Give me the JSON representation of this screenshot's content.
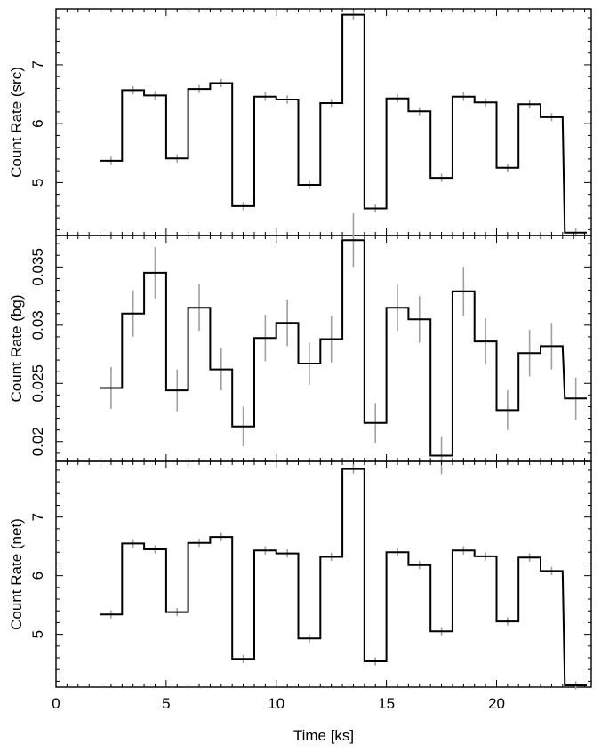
{
  "figure": {
    "xlabel": "Time [ks]",
    "colors": {
      "step": "#000000",
      "error_bars": "#a0a0a0",
      "frame": "#000000",
      "background": "#ffffff"
    }
  },
  "chart_data": [
    {
      "type": "line",
      "style": "step",
      "name": "src",
      "ylabel": "Count Rate (src)",
      "xlim": [
        0,
        24.3
      ],
      "ylim": [
        4.1,
        7.95
      ],
      "xticks": [
        0,
        5,
        10,
        15,
        20
      ],
      "xtick_labels": [
        "",
        "",
        "",
        "",
        ""
      ],
      "yticks": [
        5,
        6,
        7
      ],
      "ytick_labels": [
        "5",
        "6",
        "7"
      ],
      "bin_width": 1.0,
      "x": [
        2.5,
        3.5,
        4.5,
        5.5,
        6.5,
        7.5,
        8.5,
        9.5,
        10.5,
        11.5,
        12.5,
        13.5,
        14.5,
        15.5,
        16.5,
        17.5,
        18.5,
        19.5,
        20.5,
        21.5,
        22.5,
        23.6
      ],
      "y": [
        5.37,
        6.57,
        6.48,
        5.41,
        6.59,
        6.69,
        4.6,
        6.46,
        6.41,
        4.96,
        6.35,
        7.85,
        4.56,
        6.43,
        6.21,
        5.08,
        6.46,
        6.36,
        5.25,
        6.33,
        6.11,
        4.15
      ],
      "yerr": [
        0.07,
        0.07,
        0.07,
        0.07,
        0.07,
        0.07,
        0.07,
        0.07,
        0.07,
        0.07,
        0.07,
        0.08,
        0.07,
        0.07,
        0.07,
        0.07,
        0.07,
        0.07,
        0.07,
        0.07,
        0.07,
        0.07
      ],
      "grid": false
    },
    {
      "type": "line",
      "style": "step",
      "name": "bg",
      "ylabel": "Count Rate (bg)",
      "xlim": [
        0,
        24.3
      ],
      "ylim": [
        0.0183,
        0.0377
      ],
      "xticks": [
        0,
        5,
        10,
        15,
        20
      ],
      "xtick_labels": [
        "",
        "",
        "",
        "",
        ""
      ],
      "yticks": [
        0.02,
        0.025,
        0.03,
        0.035
      ],
      "ytick_labels": [
        "0.02",
        "0.025",
        "0.03",
        "0.035"
      ],
      "bin_width": 1.0,
      "x": [
        2.5,
        3.5,
        4.5,
        5.5,
        6.5,
        7.5,
        8.5,
        9.5,
        10.5,
        11.5,
        12.5,
        13.5,
        14.5,
        15.5,
        16.5,
        17.5,
        18.5,
        19.5,
        20.5,
        21.5,
        22.5,
        23.6
      ],
      "y": [
        0.0246,
        0.031,
        0.0345,
        0.0244,
        0.0315,
        0.0262,
        0.0213,
        0.0289,
        0.0302,
        0.0267,
        0.0288,
        0.0373,
        0.0216,
        0.0315,
        0.0305,
        0.0188,
        0.0329,
        0.0286,
        0.0227,
        0.0276,
        0.0282,
        0.0237
      ],
      "yerr": [
        0.0018,
        0.002,
        0.0022,
        0.0018,
        0.002,
        0.0018,
        0.0017,
        0.002,
        0.002,
        0.0018,
        0.002,
        0.0023,
        0.0017,
        0.002,
        0.002,
        0.0016,
        0.0021,
        0.002,
        0.0017,
        0.002,
        0.002,
        0.0018
      ],
      "grid": false
    },
    {
      "type": "line",
      "style": "step",
      "name": "net",
      "ylabel": "Count Rate (net)",
      "xlim": [
        0,
        24.3
      ],
      "ylim": [
        4.1,
        7.95
      ],
      "xticks": [
        0,
        5,
        10,
        15,
        20
      ],
      "xtick_labels": [
        "0",
        "5",
        "10",
        "15",
        "20"
      ],
      "yticks": [
        5,
        6,
        7
      ],
      "ytick_labels": [
        "5",
        "6",
        "7"
      ],
      "bin_width": 1.0,
      "x": [
        2.5,
        3.5,
        4.5,
        5.5,
        6.5,
        7.5,
        8.5,
        9.5,
        10.5,
        11.5,
        12.5,
        13.5,
        14.5,
        15.5,
        16.5,
        17.5,
        18.5,
        19.5,
        20.5,
        21.5,
        22.5,
        23.6
      ],
      "y": [
        5.34,
        6.55,
        6.45,
        5.38,
        6.56,
        6.66,
        4.58,
        6.43,
        6.38,
        4.93,
        6.32,
        7.82,
        4.54,
        6.4,
        6.18,
        5.05,
        6.43,
        6.33,
        5.22,
        6.31,
        6.08,
        4.13
      ],
      "yerr": [
        0.07,
        0.07,
        0.07,
        0.07,
        0.07,
        0.07,
        0.07,
        0.07,
        0.07,
        0.07,
        0.07,
        0.08,
        0.07,
        0.07,
        0.07,
        0.07,
        0.07,
        0.07,
        0.07,
        0.07,
        0.07,
        0.07
      ],
      "grid": false
    }
  ]
}
